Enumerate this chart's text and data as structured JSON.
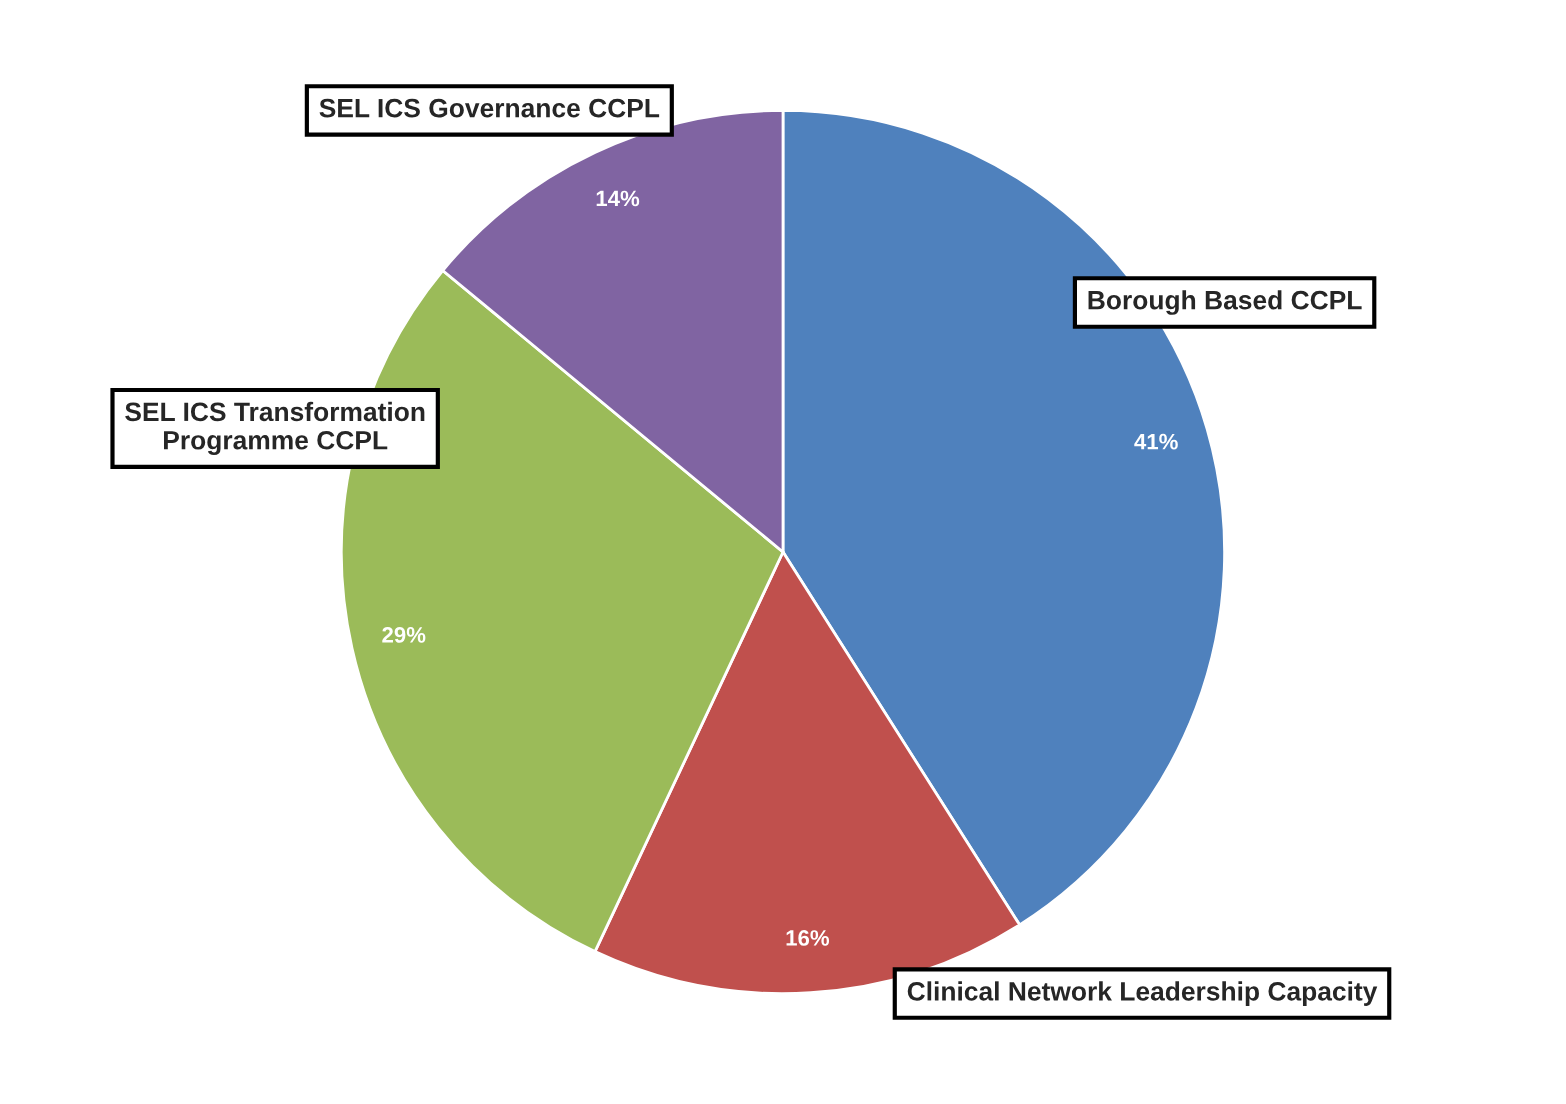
{
  "chart_data": {
    "type": "pie",
    "categories": [
      "Borough Based CCPL",
      "Clinical Network Leadership Capacity",
      "SEL ICS Transformation Programme CCPL",
      "SEL ICS Governance CCPL"
    ],
    "values": [
      41,
      16,
      29,
      14
    ],
    "value_labels": [
      "41%",
      "16%",
      "29%",
      "14%"
    ],
    "colors": [
      "#4f81bd",
      "#c0504d",
      "#9bbb59",
      "#8064a2"
    ],
    "legend": false
  }
}
